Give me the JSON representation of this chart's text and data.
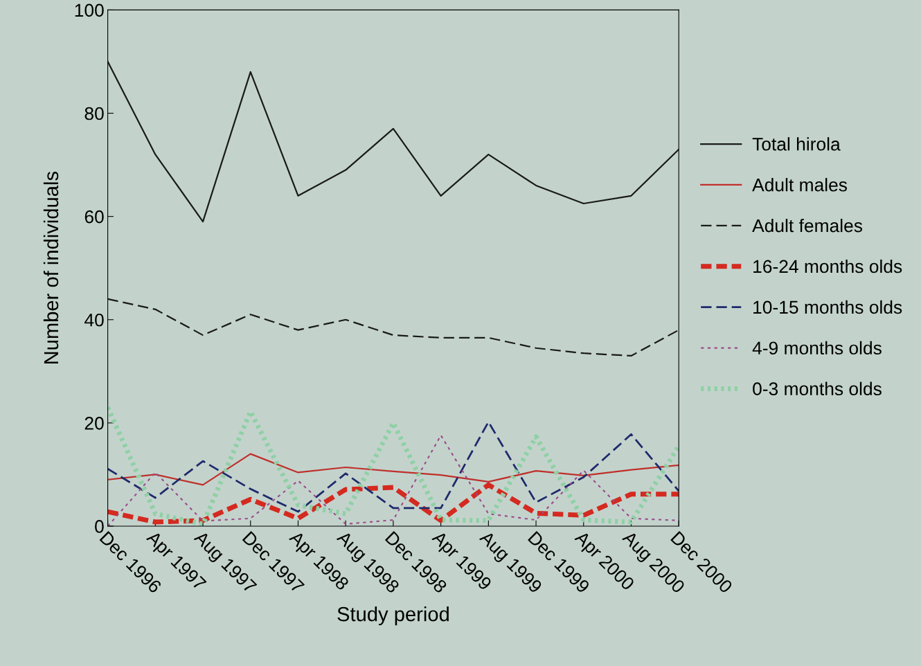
{
  "chart_data": {
    "type": "line",
    "xlabel": "Study period",
    "ylabel": "Number of individuals",
    "categories": [
      "Dec 1996",
      "Apr 1997",
      "Aug 1997",
      "Dec 1997",
      "Apr 1998",
      "Aug 1998",
      "Dec 1998",
      "Apr 1999",
      "Aug 1999",
      "Dec 1999",
      "Apr 2000",
      "Aug 2000",
      "Dec 2000"
    ],
    "series": [
      {
        "name": "Total hirola",
        "color": "#1a1a1a",
        "line_style": "solid",
        "values": [
          90,
          72,
          59,
          88,
          64,
          69,
          77,
          64,
          72,
          66,
          62.5,
          64,
          73
        ]
      },
      {
        "name": "Adult males",
        "color": "#c0302a",
        "line_style": "solid",
        "values": [
          9,
          10,
          8,
          14,
          10.4,
          11.4,
          10.6,
          9.9,
          8.6,
          10.7,
          9.8,
          10.9,
          11.8
        ]
      },
      {
        "name": "Adult females",
        "color": "#1a1a1a",
        "line_style": "dashed",
        "values": [
          44,
          42,
          37,
          41,
          38,
          40,
          37,
          36.5,
          36.5,
          34.5,
          33.5,
          33,
          38
        ]
      },
      {
        "name": "16-24 months olds",
        "color": "#d42a20",
        "line_style": "dashed",
        "values": [
          2.8,
          0.8,
          1.1,
          5.2,
          1.5,
          7.1,
          7.5,
          1.1,
          8,
          2.5,
          2.1,
          6.2,
          6.2
        ]
      },
      {
        "name": "10-15 months olds",
        "color": "#1f2a6b",
        "line_style": "dashed",
        "values": [
          11.1,
          5.5,
          12.6,
          7.2,
          2.8,
          10.2,
          3.5,
          3.5,
          20.2,
          4.6,
          9.5,
          17.8,
          6.8
        ]
      },
      {
        "name": "4-9 months olds",
        "color": "#9a4a8a",
        "line_style": "dotted",
        "values": [
          0,
          10.4,
          1,
          1.5,
          8.8,
          0.4,
          1.2,
          17.6,
          2.4,
          1.2,
          10.8,
          1.5,
          1.1
        ]
      },
      {
        "name": "0-3 months olds",
        "color": "#8fd0a5",
        "line_style": "dotted",
        "values": [
          23,
          2.4,
          0.4,
          22.2,
          4.1,
          2.4,
          20,
          1.2,
          1.1,
          17.3,
          1.2,
          0.8,
          15.5
        ]
      }
    ],
    "ylim": [
      0,
      100
    ],
    "yticks": [
      0,
      20,
      40,
      60,
      80,
      100
    ],
    "grid": false,
    "legend": "right",
    "marker": "none"
  }
}
